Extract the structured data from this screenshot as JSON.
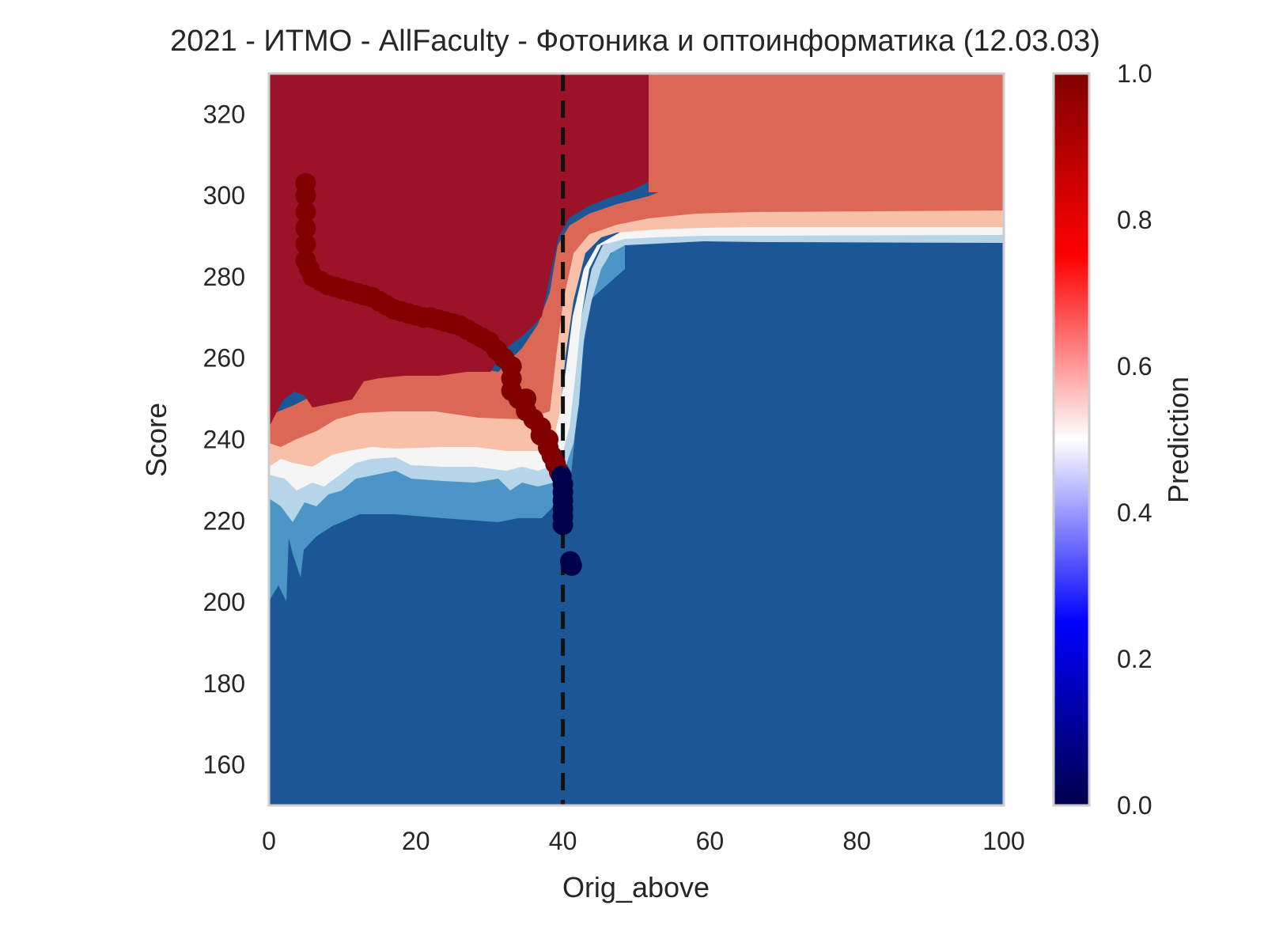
{
  "chart_data": {
    "type": "heatmap",
    "title": "2021 - ИТМО - AllFaculty - Фотоника и оптоинформатика (12.03.03)",
    "xlabel": "Orig_above",
    "ylabel": "Score",
    "xlim": [
      0,
      100
    ],
    "ylim": [
      150,
      330
    ],
    "x_ticks": [
      "0",
      "20",
      "40",
      "60",
      "80",
      "100"
    ],
    "y_ticks": [
      "160",
      "180",
      "200",
      "220",
      "240",
      "260",
      "280",
      "300",
      "320"
    ],
    "grid": false,
    "threshold_line": {
      "x": 40,
      "style": "dashed",
      "color": "#111111"
    },
    "contour_levels": [
      {
        "range": [
          0.0,
          0.1
        ],
        "color": "#1b5797"
      },
      {
        "range": [
          0.1,
          0.2
        ],
        "color": "#4b96c6"
      },
      {
        "range": [
          0.2,
          0.3
        ],
        "color": "#b6d5e8"
      },
      {
        "range": [
          0.3,
          0.5
        ],
        "color": "#f5f5f5"
      },
      {
        "range": [
          0.5,
          0.7
        ],
        "color": "#f9c0a9"
      },
      {
        "range": [
          0.7,
          0.9
        ],
        "color": "#db6754"
      },
      {
        "range": [
          0.9,
          1.0
        ],
        "color": "#9c1228"
      }
    ],
    "points_high": {
      "prediction": 1,
      "color": "#800000",
      "points": [
        [
          5,
          303
        ],
        [
          5,
          300
        ],
        [
          5,
          296
        ],
        [
          5,
          292
        ],
        [
          5,
          288
        ],
        [
          5,
          284
        ],
        [
          5.5,
          282
        ],
        [
          6,
          280
        ],
        [
          7,
          279
        ],
        [
          8,
          278
        ],
        [
          9,
          277.5
        ],
        [
          10,
          277
        ],
        [
          11,
          276.5
        ],
        [
          12,
          276
        ],
        [
          13,
          275.5
        ],
        [
          14,
          275
        ],
        [
          15,
          274
        ],
        [
          16,
          273
        ],
        [
          17,
          272
        ],
        [
          18,
          271.5
        ],
        [
          19,
          271
        ],
        [
          20,
          270.5
        ],
        [
          21,
          270
        ],
        [
          22,
          270
        ],
        [
          23,
          269.5
        ],
        [
          24,
          269
        ],
        [
          25,
          268.5
        ],
        [
          26,
          268
        ],
        [
          27,
          267
        ],
        [
          28,
          266
        ],
        [
          29,
          265
        ],
        [
          30,
          264
        ],
        [
          31,
          262
        ],
        [
          32,
          260
        ],
        [
          33,
          258
        ],
        [
          33,
          255
        ],
        [
          33,
          252
        ],
        [
          34,
          250
        ],
        [
          35,
          250
        ],
        [
          35,
          247
        ],
        [
          36,
          245
        ],
        [
          37,
          243
        ],
        [
          37,
          241
        ],
        [
          38,
          240
        ],
        [
          38,
          238
        ],
        [
          38.5,
          236
        ],
        [
          39,
          234
        ],
        [
          39.5,
          232
        ]
      ]
    },
    "points_low": {
      "prediction": 0,
      "color": "#00004a",
      "points": [
        [
          39.8,
          231
        ],
        [
          40,
          229
        ],
        [
          40,
          227
        ],
        [
          40,
          225
        ],
        [
          40,
          223
        ],
        [
          40,
          221
        ],
        [
          40,
          219
        ],
        [
          41,
          210
        ],
        [
          41.2,
          209
        ]
      ]
    },
    "colorbar": {
      "label": "Prediction",
      "range": [
        0,
        1
      ],
      "ticks": [
        "0.0",
        "0.2",
        "0.4",
        "0.6",
        "0.8",
        "1.0"
      ],
      "colormap": "seismic",
      "stops": [
        "#00004c",
        "#0000ff",
        "#ffffff",
        "#ff0000",
        "#800000"
      ]
    }
  }
}
